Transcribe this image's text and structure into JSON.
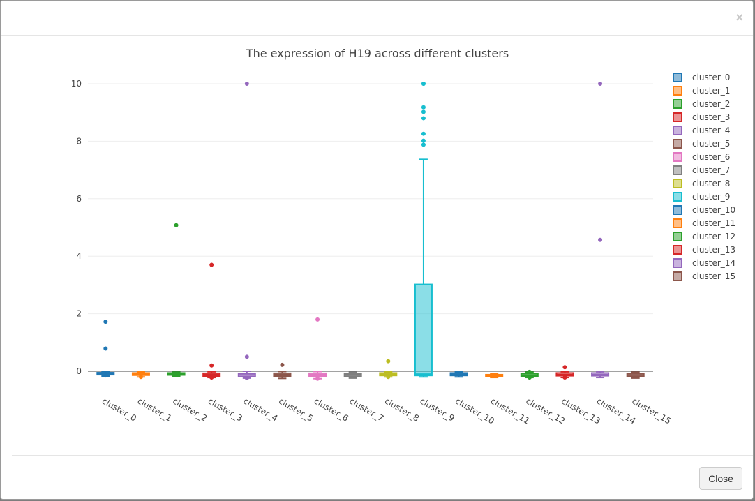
{
  "modal": {
    "close_symbol": "×",
    "close_button_label": "Close"
  },
  "chart_data": {
    "type": "box",
    "title": "The expression of H19 across different clusters",
    "xlabel": "",
    "ylabel": "",
    "ylim": [
      -0.6,
      10.6
    ],
    "yticks": [
      0,
      2,
      4,
      6,
      8,
      10
    ],
    "grid": true,
    "legend_placement": "right",
    "categories": [
      "cluster_0",
      "cluster_1",
      "cluster_2",
      "cluster_3",
      "cluster_4",
      "cluster_5",
      "cluster_6",
      "cluster_7",
      "cluster_8",
      "cluster_9",
      "cluster_10",
      "cluster_11",
      "cluster_12",
      "cluster_13",
      "cluster_14",
      "cluster_15"
    ],
    "colors": [
      "#1f77b4",
      "#ff7f0e",
      "#2ca02c",
      "#d62728",
      "#9467bd",
      "#8c564b",
      "#e377c2",
      "#7f7f7f",
      "#bcbd22",
      "#17becf",
      "#1f77b4",
      "#ff7f0e",
      "#2ca02c",
      "#d62728",
      "#9467bd",
      "#8c564b"
    ],
    "series": [
      {
        "name": "cluster_0",
        "whisker_low": -0.17,
        "q1": -0.12,
        "median": -0.08,
        "q3": -0.05,
        "whisker_high": -0.01,
        "outliers": [
          1.72,
          0.79,
          -0.15
        ]
      },
      {
        "name": "cluster_1",
        "whisker_low": -0.2,
        "q1": -0.14,
        "median": -0.1,
        "q3": -0.06,
        "whisker_high": -0.02,
        "outliers": [
          -0.2
        ]
      },
      {
        "name": "cluster_2",
        "whisker_low": -0.17,
        "q1": -0.13,
        "median": -0.09,
        "q3": -0.06,
        "whisker_high": -0.03,
        "outliers": [
          5.08
        ]
      },
      {
        "name": "cluster_3",
        "whisker_low": -0.22,
        "q1": -0.17,
        "median": -0.12,
        "q3": -0.07,
        "whisker_high": -0.02,
        "outliers": [
          3.7,
          0.2,
          -0.22
        ]
      },
      {
        "name": "cluster_4",
        "whisker_low": -0.24,
        "q1": -0.19,
        "median": -0.13,
        "q3": -0.08,
        "whisker_high": 0.0,
        "outliers": [
          10.0,
          0.5,
          -0.24
        ]
      },
      {
        "name": "cluster_5",
        "whisker_low": -0.25,
        "q1": -0.17,
        "median": -0.12,
        "q3": -0.07,
        "whisker_high": -0.01,
        "outliers": [
          0.22
        ]
      },
      {
        "name": "cluster_6",
        "whisker_low": -0.26,
        "q1": -0.17,
        "median": -0.12,
        "q3": -0.07,
        "whisker_high": -0.01,
        "outliers": [
          1.8,
          -0.26
        ]
      },
      {
        "name": "cluster_7",
        "whisker_low": -0.24,
        "q1": -0.18,
        "median": -0.13,
        "q3": -0.09,
        "whisker_high": -0.04,
        "outliers": []
      },
      {
        "name": "cluster_8",
        "whisker_low": -0.2,
        "q1": -0.15,
        "median": -0.11,
        "q3": -0.06,
        "whisker_high": -0.02,
        "outliers": [
          0.35,
          -0.2
        ]
      },
      {
        "name": "cluster_9",
        "whisker_low": -0.2,
        "q1": -0.15,
        "median": -0.1,
        "q3": 3.02,
        "whisker_high": 7.37,
        "outliers": [
          10.0,
          10.0,
          9.18,
          9.02,
          8.8,
          8.26,
          8.02,
          7.88
        ]
      },
      {
        "name": "cluster_10",
        "whisker_low": -0.2,
        "q1": -0.15,
        "median": -0.11,
        "q3": -0.06,
        "whisker_high": -0.02,
        "outliers": []
      },
      {
        "name": "cluster_11",
        "whisker_low": -0.22,
        "q1": -0.19,
        "median": -0.16,
        "q3": -0.12,
        "whisker_high": -0.08,
        "outliers": []
      },
      {
        "name": "cluster_12",
        "whisker_low": -0.22,
        "q1": -0.18,
        "median": -0.15,
        "q3": -0.09,
        "whisker_high": -0.03,
        "outliers": [
          -0.22,
          -0.02
        ]
      },
      {
        "name": "cluster_13",
        "whisker_low": -0.22,
        "q1": -0.16,
        "median": -0.12,
        "q3": -0.06,
        "whisker_high": -0.01,
        "outliers": [
          0.14,
          -0.22
        ]
      },
      {
        "name": "cluster_14",
        "whisker_low": -0.22,
        "q1": -0.16,
        "median": -0.12,
        "q3": -0.06,
        "whisker_high": -0.01,
        "outliers": [
          10.0,
          4.57
        ]
      },
      {
        "name": "cluster_15",
        "whisker_low": -0.24,
        "q1": -0.18,
        "median": -0.13,
        "q3": -0.08,
        "whisker_high": -0.03,
        "outliers": []
      }
    ]
  }
}
